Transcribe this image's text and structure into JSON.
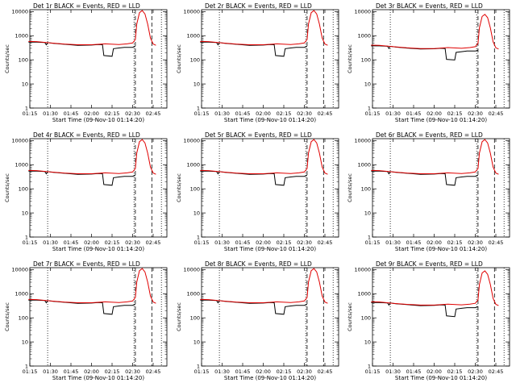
{
  "chart_data": {
    "type": "line",
    "layout": "3x3 grid",
    "grid": false,
    "legend": "none",
    "yscale": "log",
    "xlim": [
      "01:15",
      "02:55"
    ],
    "ylim": [
      1,
      12000
    ],
    "xticks": [
      "01:15",
      "01:30",
      "01:45",
      "02:00",
      "02:15",
      "02:30",
      "02:45"
    ],
    "yticks": [
      "1",
      "10",
      "100",
      "1000",
      "10000"
    ],
    "xlabel": "Start Time (09-Nov-10 01:14:20)",
    "ylabel": "Counts/sec",
    "vertical_lines": [
      {
        "time": "01:28",
        "style": "dotted"
      },
      {
        "time": "02:31",
        "style": "dotted"
      },
      {
        "time": "02:32",
        "style": "dashed"
      },
      {
        "time": "02:44",
        "style": "dashed"
      },
      {
        "time": "02:51",
        "style": "dotted"
      }
    ],
    "series_colors": {
      "events": "#000000",
      "lld": "#e00000"
    },
    "panels": [
      {
        "title": "Det 1r BLACK = Events, RED = LLD",
        "scale": 1.0,
        "events": {
          "x": [
            "01:14",
            "01:20",
            "01:26",
            "01:27",
            "01:28",
            "01:32",
            "01:40",
            "01:50",
            "02:00",
            "02:05",
            "02:08",
            "02:09",
            "02:15",
            "02:16",
            "02:20",
            "02:24",
            "02:30",
            "02:32"
          ],
          "y": [
            540,
            540,
            520,
            420,
            520,
            480,
            440,
            400,
            410,
            430,
            420,
            150,
            140,
            290,
            310,
            330,
            330,
            360
          ]
        },
        "lld": {
          "x": [
            "01:14",
            "01:20",
            "01:30",
            "01:40",
            "01:50",
            "02:00",
            "02:10",
            "02:20",
            "02:26",
            "02:30",
            "02:32",
            "02:33",
            "02:35",
            "02:37",
            "02:39",
            "02:41",
            "02:43",
            "02:45",
            "02:47"
          ],
          "y": [
            580,
            570,
            500,
            450,
            420,
            420,
            460,
            430,
            460,
            500,
            700,
            3000,
            9000,
            11000,
            8000,
            3000,
            800,
            450,
            400
          ]
        }
      },
      {
        "title": "Det 2r BLACK = Events, RED = LLD",
        "scale": 1.0,
        "events": {
          "x": [
            "01:14",
            "01:20",
            "01:26",
            "01:27",
            "01:28",
            "01:32",
            "01:40",
            "01:50",
            "02:00",
            "02:05",
            "02:08",
            "02:09",
            "02:15",
            "02:16",
            "02:20",
            "02:24",
            "02:30",
            "02:32"
          ],
          "y": [
            540,
            540,
            520,
            420,
            520,
            480,
            440,
            400,
            410,
            430,
            420,
            150,
            140,
            290,
            310,
            330,
            330,
            360
          ]
        },
        "lld": {
          "x": [
            "01:14",
            "01:20",
            "01:30",
            "01:40",
            "01:50",
            "02:00",
            "02:10",
            "02:20",
            "02:26",
            "02:30",
            "02:32",
            "02:33",
            "02:35",
            "02:37",
            "02:39",
            "02:41",
            "02:43",
            "02:45",
            "02:47"
          ],
          "y": [
            580,
            570,
            500,
            450,
            420,
            420,
            460,
            430,
            460,
            500,
            700,
            3000,
            9000,
            11000,
            8000,
            3000,
            800,
            450,
            400
          ]
        }
      },
      {
        "title": "Det 3r BLACK = Events, RED = LLD",
        "scale": 0.7,
        "events": {
          "x": [
            "01:14",
            "01:20",
            "01:26",
            "01:27",
            "01:28",
            "01:32",
            "01:40",
            "01:50",
            "02:00",
            "02:05",
            "02:08",
            "02:09",
            "02:15",
            "02:16",
            "02:20",
            "02:24",
            "02:30",
            "02:32"
          ],
          "y": [
            378,
            378,
            364,
            294,
            364,
            336,
            308,
            280,
            287,
            301,
            294,
            105,
            98,
            203,
            217,
            231,
            231,
            252
          ]
        },
        "lld": {
          "x": [
            "01:14",
            "01:20",
            "01:30",
            "01:40",
            "01:50",
            "02:00",
            "02:10",
            "02:20",
            "02:26",
            "02:30",
            "02:32",
            "02:33",
            "02:35",
            "02:37",
            "02:39",
            "02:41",
            "02:43",
            "02:45",
            "02:47"
          ],
          "y": [
            406,
            399,
            350,
            315,
            294,
            294,
            322,
            301,
            322,
            350,
            490,
            2100,
            6300,
            7700,
            5600,
            2100,
            560,
            315,
            280
          ]
        }
      },
      {
        "title": "Det 4r BLACK = Events, RED = LLD",
        "scale": 1.0,
        "events": {
          "x": [
            "01:14",
            "01:20",
            "01:26",
            "01:27",
            "01:28",
            "01:32",
            "01:40",
            "01:50",
            "02:00",
            "02:05",
            "02:08",
            "02:09",
            "02:15",
            "02:16",
            "02:20",
            "02:24",
            "02:30",
            "02:32"
          ],
          "y": [
            540,
            540,
            520,
            420,
            520,
            480,
            440,
            400,
            410,
            430,
            420,
            150,
            140,
            290,
            310,
            330,
            330,
            360
          ]
        },
        "lld": {
          "x": [
            "01:14",
            "01:20",
            "01:30",
            "01:40",
            "01:50",
            "02:00",
            "02:10",
            "02:20",
            "02:26",
            "02:30",
            "02:32",
            "02:33",
            "02:35",
            "02:37",
            "02:39",
            "02:41",
            "02:43",
            "02:45",
            "02:47"
          ],
          "y": [
            580,
            570,
            500,
            450,
            420,
            420,
            460,
            430,
            460,
            500,
            700,
            3000,
            9000,
            11000,
            8000,
            3000,
            800,
            450,
            400
          ]
        }
      },
      {
        "title": "Det 5r BLACK = Events, RED = LLD",
        "scale": 1.0,
        "events": {
          "x": [
            "01:14",
            "01:20",
            "01:26",
            "01:27",
            "01:28",
            "01:32",
            "01:40",
            "01:50",
            "02:00",
            "02:05",
            "02:08",
            "02:09",
            "02:15",
            "02:16",
            "02:20",
            "02:24",
            "02:30",
            "02:32"
          ],
          "y": [
            540,
            540,
            520,
            420,
            520,
            480,
            440,
            400,
            410,
            430,
            420,
            150,
            140,
            290,
            310,
            330,
            330,
            360
          ]
        },
        "lld": {
          "x": [
            "01:14",
            "01:20",
            "01:30",
            "01:40",
            "01:50",
            "02:00",
            "02:10",
            "02:20",
            "02:26",
            "02:30",
            "02:32",
            "02:33",
            "02:35",
            "02:37",
            "02:39",
            "02:41",
            "02:43",
            "02:45",
            "02:47"
          ],
          "y": [
            580,
            570,
            500,
            450,
            420,
            420,
            460,
            430,
            460,
            500,
            700,
            3000,
            9000,
            11000,
            8000,
            3000,
            800,
            450,
            400
          ]
        }
      },
      {
        "title": "Det 6r BLACK = Events, RED = LLD",
        "scale": 1.0,
        "events": {
          "x": [
            "01:14",
            "01:20",
            "01:26",
            "01:27",
            "01:28",
            "01:32",
            "01:40",
            "01:50",
            "02:00",
            "02:05",
            "02:08",
            "02:09",
            "02:15",
            "02:16",
            "02:20",
            "02:24",
            "02:30",
            "02:32"
          ],
          "y": [
            540,
            540,
            520,
            420,
            520,
            480,
            440,
            400,
            410,
            430,
            420,
            150,
            140,
            290,
            310,
            330,
            330,
            360
          ]
        },
        "lld": {
          "x": [
            "01:14",
            "01:20",
            "01:30",
            "01:40",
            "01:50",
            "02:00",
            "02:10",
            "02:20",
            "02:26",
            "02:30",
            "02:32",
            "02:33",
            "02:35",
            "02:37",
            "02:39",
            "02:41",
            "02:43",
            "02:45",
            "02:47"
          ],
          "y": [
            580,
            570,
            500,
            450,
            420,
            420,
            460,
            430,
            460,
            500,
            700,
            3000,
            9000,
            11000,
            8000,
            3000,
            800,
            450,
            400
          ]
        }
      },
      {
        "title": "Det 7r BLACK = Events, RED = LLD",
        "scale": 1.0,
        "events": {
          "x": [
            "01:14",
            "01:20",
            "01:26",
            "01:27",
            "01:28",
            "01:32",
            "01:40",
            "01:50",
            "02:00",
            "02:05",
            "02:08",
            "02:09",
            "02:15",
            "02:16",
            "02:20",
            "02:24",
            "02:30",
            "02:32"
          ],
          "y": [
            540,
            540,
            520,
            420,
            520,
            480,
            440,
            400,
            410,
            430,
            420,
            150,
            140,
            290,
            310,
            330,
            330,
            360
          ]
        },
        "lld": {
          "x": [
            "01:14",
            "01:20",
            "01:30",
            "01:40",
            "01:50",
            "02:00",
            "02:10",
            "02:20",
            "02:26",
            "02:30",
            "02:32",
            "02:33",
            "02:35",
            "02:37",
            "02:39",
            "02:41",
            "02:43",
            "02:45",
            "02:47"
          ],
          "y": [
            580,
            570,
            500,
            450,
            420,
            420,
            460,
            430,
            460,
            500,
            700,
            3000,
            9000,
            11000,
            8000,
            3000,
            800,
            450,
            400
          ]
        }
      },
      {
        "title": "Det 8r BLACK = Events, RED = LLD",
        "scale": 1.0,
        "events": {
          "x": [
            "01:14",
            "01:20",
            "01:26",
            "01:27",
            "01:28",
            "01:32",
            "01:40",
            "01:50",
            "02:00",
            "02:05",
            "02:08",
            "02:09",
            "02:15",
            "02:16",
            "02:20",
            "02:24",
            "02:30",
            "02:32"
          ],
          "y": [
            540,
            540,
            520,
            420,
            520,
            480,
            440,
            400,
            410,
            430,
            420,
            150,
            140,
            290,
            310,
            330,
            330,
            360
          ]
        },
        "lld": {
          "x": [
            "01:14",
            "01:20",
            "01:30",
            "01:40",
            "01:50",
            "02:00",
            "02:10",
            "02:20",
            "02:26",
            "02:30",
            "02:32",
            "02:33",
            "02:35",
            "02:37",
            "02:39",
            "02:41",
            "02:43",
            "02:45",
            "02:47"
          ],
          "y": [
            580,
            570,
            500,
            450,
            420,
            420,
            460,
            430,
            460,
            500,
            700,
            3000,
            9000,
            11000,
            8000,
            3000,
            800,
            450,
            400
          ]
        }
      },
      {
        "title": "Det 9r BLACK = Events, RED = LLD",
        "scale": 0.8,
        "events": {
          "x": [
            "01:14",
            "01:20",
            "01:26",
            "01:27",
            "01:28",
            "01:32",
            "01:40",
            "01:50",
            "02:00",
            "02:05",
            "02:08",
            "02:09",
            "02:15",
            "02:16",
            "02:20",
            "02:24",
            "02:30",
            "02:32"
          ],
          "y": [
            432,
            432,
            416,
            336,
            416,
            384,
            352,
            320,
            328,
            344,
            336,
            120,
            112,
            232,
            248,
            264,
            264,
            288
          ]
        },
        "lld": {
          "x": [
            "01:14",
            "01:20",
            "01:30",
            "01:40",
            "01:50",
            "02:00",
            "02:10",
            "02:20",
            "02:26",
            "02:30",
            "02:32",
            "02:33",
            "02:35",
            "02:37",
            "02:39",
            "02:41",
            "02:43",
            "02:45",
            "02:47"
          ],
          "y": [
            464,
            456,
            400,
            360,
            336,
            336,
            368,
            344,
            368,
            400,
            560,
            2400,
            7200,
            8800,
            6400,
            2400,
            640,
            360,
            320
          ]
        }
      }
    ]
  }
}
